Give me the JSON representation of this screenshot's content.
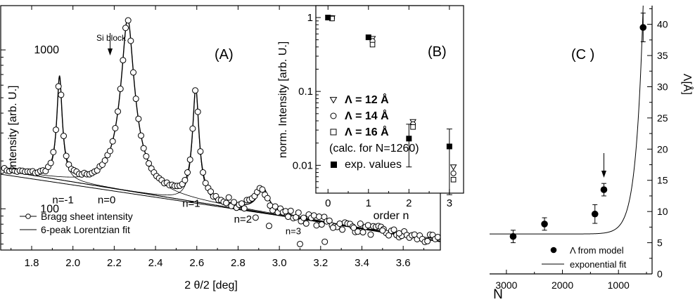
{
  "chart_data": [
    {
      "id": "A",
      "type": "scatter",
      "panel_label": "(A)",
      "xlabel": "2 θ/2 [deg]",
      "ylabel": "Intensity [arb. U.]",
      "xlim": [
        1.65,
        3.78
      ],
      "ylim": [
        55,
        1900
      ],
      "yscale": "log",
      "xticks": [
        "1.8",
        "2.0",
        "2.2",
        "2.4",
        "2.6",
        "2.8",
        "3.0",
        "3.2",
        "3.4",
        "3.6"
      ],
      "xtick_values": [
        1.8,
        2.0,
        2.2,
        2.4,
        2.6,
        2.8,
        3.0,
        3.2,
        3.4,
        3.6
      ],
      "yticks": [
        "100",
        "1000"
      ],
      "ytick_values": [
        100,
        1000
      ],
      "legend": {
        "position": "bottom-left",
        "entries": [
          "Bragg sheet intensity",
          "6-peak Lorentzian fit"
        ]
      },
      "annotations": {
        "si_block": {
          "text": "Si block",
          "x": 2.18
        },
        "orders": [
          {
            "text": "n=-1",
            "x": 1.9,
            "y": 108
          },
          {
            "text": "n=0",
            "x": 2.12,
            "y": 108
          },
          {
            "text": "n=1",
            "x": 2.53,
            "y": 103
          },
          {
            "text": "n=2",
            "x": 2.78,
            "y": 82
          },
          {
            "text": "n=3",
            "x": 3.03,
            "y": 69
          }
        ]
      },
      "fit": {
        "baseline": [
          [
            1.65,
            175
          ],
          [
            3.78,
            62
          ]
        ],
        "baseline2": [
          [
            1.65,
            165
          ],
          [
            3.78,
            64
          ]
        ],
        "peaks": [
          {
            "x0": 1.935,
            "amp": 530,
            "gamma": 0.011
          },
          {
            "x0": 2.265,
            "amp": 1450,
            "gamma": 0.023
          },
          {
            "x0": 2.595,
            "amp": 460,
            "gamma": 0.013
          },
          {
            "x0": 2.92,
            "amp": 40,
            "gamma": 0.03
          }
        ]
      }
    },
    {
      "id": "B",
      "type": "scatter",
      "panel_label": "(B)",
      "xlabel": "order n",
      "ylabel": "norm. Intensity [arb. U.]",
      "xlim": [
        -0.3,
        3.35
      ],
      "ylim": [
        0.0042,
        1.45
      ],
      "yscale": "log",
      "xticks": [
        "0",
        "1",
        "2",
        "3"
      ],
      "xtick_values": [
        0,
        1,
        2,
        3
      ],
      "yticks": [
        "0.01",
        "0.1",
        "1"
      ],
      "ytick_values": [
        0.01,
        0.1,
        1
      ],
      "legend_title": "",
      "legend": [
        {
          "marker": "triangle-down",
          "text": "Λ = 12 Å"
        },
        {
          "marker": "circle",
          "text": "Λ = 14 Å"
        },
        {
          "marker": "square",
          "text": "Λ = 16 Å"
        },
        {
          "marker": "none",
          "text": "(calc. for N=1260)"
        },
        {
          "marker": "filled-square",
          "text": "exp. values"
        }
      ],
      "series": [
        {
          "name": "Λ = 12 Å",
          "x": [
            0.1,
            1.1,
            2.1,
            3.1
          ],
          "y": [
            0.99,
            0.52,
            0.039,
            0.0095
          ]
        },
        {
          "name": "Λ = 14 Å",
          "x": [
            0.1,
            1.1,
            2.1,
            3.1
          ],
          "y": [
            0.98,
            0.48,
            0.036,
            0.0078
          ]
        },
        {
          "name": "Λ = 16 Å",
          "x": [
            0.1,
            1.1,
            2.1,
            3.1
          ],
          "y": [
            0.97,
            0.43,
            0.033,
            0.0064
          ]
        },
        {
          "name": "exp. values",
          "x": [
            0,
            1,
            2,
            3
          ],
          "y": [
            1.0,
            0.54,
            0.023,
            0.018
          ],
          "err_low": [
            1.0,
            0.54,
            0.0095,
            0.004
          ],
          "err_high": [
            1.0,
            0.54,
            0.036,
            0.031
          ]
        }
      ]
    },
    {
      "id": "C",
      "type": "scatter",
      "panel_label": "(C )",
      "xlabel": "N",
      "ylabel": "Λ[Å]",
      "xlim": [
        3300,
        400
      ],
      "ylim": [
        0,
        43
      ],
      "xticks": [
        "3000",
        "2000",
        "1000"
      ],
      "xtick_values": [
        3000,
        2000,
        1000
      ],
      "yticks": [
        "0",
        "5",
        "10",
        "15",
        "20",
        "25",
        "30",
        "35",
        "40"
      ],
      "ytick_values": [
        0,
        5,
        10,
        15,
        20,
        25,
        30,
        35,
        40
      ],
      "legend": {
        "position": "bottom-right",
        "entries": [
          "Λ from model",
          "exponential fit"
        ]
      },
      "series": [
        {
          "name": "Λ from model",
          "x": [
            2880,
            2320,
            1420,
            1260,
            560
          ],
          "y": [
            6.0,
            8.0,
            9.6,
            13.5,
            39.5
          ],
          "err": [
            1.0,
            1.0,
            1.5,
            1.0,
            2.3
          ]
        }
      ],
      "fit": {
        "y0": 6.4,
        "A": 2900,
        "t": 128
      },
      "arrow_x": 1260
    }
  ]
}
